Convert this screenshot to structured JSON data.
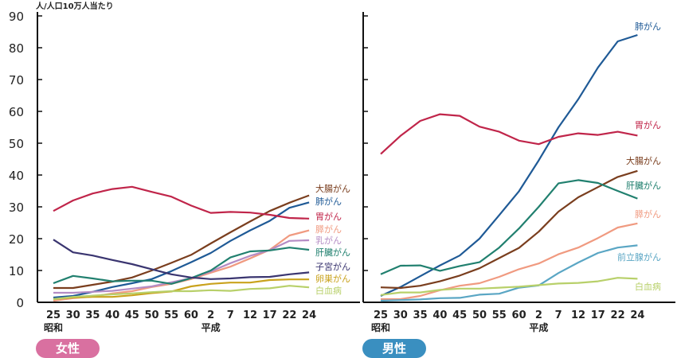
{
  "chart_data": [
    {
      "type": "line",
      "title": "女性",
      "ylabel": "人/人口10万人当たり",
      "ylim": [
        0,
        90
      ],
      "yticks": [
        0,
        10,
        20,
        30,
        40,
        50,
        60,
        70,
        80,
        90
      ],
      "categories": [
        "25",
        "30",
        "35",
        "40",
        "45",
        "50",
        "55",
        "60",
        "2",
        "7",
        "12",
        "17",
        "22",
        "24"
      ],
      "era_labels": [
        {
          "label": "昭和",
          "at": "25"
        },
        {
          "label": "平成",
          "at": "2"
        }
      ],
      "series": [
        {
          "name": "大腸がん",
          "color": "#7a3e1e",
          "values": [
            4.5,
            4.5,
            5.5,
            6.5,
            7.8,
            10,
            12.4,
            14.9,
            18.5,
            22,
            25.4,
            28.7,
            31.3,
            33.6
          ]
        },
        {
          "name": "肺がん",
          "color": "#1f5a96",
          "values": [
            1.5,
            2,
            3.3,
            4.8,
            6,
            7.3,
            9.8,
            12.6,
            15.5,
            19.3,
            22.6,
            25.6,
            29.7,
            31.4
          ]
        },
        {
          "name": "胃がん",
          "color": "#c0254a",
          "values": [
            28.7,
            32,
            34.2,
            35.6,
            36.3,
            34.7,
            33.2,
            30.4,
            28.1,
            28.4,
            28.2,
            27.5,
            26.5,
            26.3
          ]
        },
        {
          "name": "膵がん",
          "color": "#f09a80",
          "values": [
            0.5,
            1.3,
            1.8,
            2.8,
            3.5,
            4.8,
            5.8,
            7.3,
            9.3,
            11.2,
            13.8,
            16.5,
            21,
            22.6
          ]
        },
        {
          "name": "乳がん",
          "color": "#b48cc4",
          "values": [
            3,
            3,
            3.3,
            3.6,
            4.3,
            5,
            6.3,
            7.6,
            9.7,
            12.3,
            14.6,
            16.4,
            19.3,
            19.5
          ]
        },
        {
          "name": "肝臓がん",
          "color": "#21806f",
          "values": [
            6,
            8.3,
            7.5,
            6.6,
            6.8,
            6.8,
            5.8,
            7.6,
            10,
            14.1,
            16,
            16.3,
            17.2,
            16.5
          ]
        },
        {
          "name": "子宮がん",
          "color": "#3a3570",
          "values": [
            19.7,
            15.7,
            14.7,
            13.3,
            12,
            10.4,
            8.8,
            7.8,
            7.3,
            7.5,
            7.9,
            8,
            8.8,
            9.4
          ]
        },
        {
          "name": "卵巣がん",
          "color": "#c9a21c",
          "values": [
            1,
            1.5,
            1.7,
            1.7,
            2.2,
            2.9,
            3.4,
            5,
            5.8,
            6.2,
            6.2,
            7,
            7.2,
            7.2
          ]
        },
        {
          "name": "白血病",
          "color": "#b8d06a",
          "values": [
            1,
            1.7,
            2.1,
            2.5,
            2.8,
            3.2,
            3.5,
            3.5,
            3.8,
            3.6,
            4.2,
            4.4,
            5.2,
            4.7
          ]
        }
      ]
    },
    {
      "type": "line",
      "title": "男性",
      "ylim": [
        0,
        90
      ],
      "categories": [
        "25",
        "30",
        "35",
        "40",
        "45",
        "50",
        "55",
        "60",
        "2",
        "7",
        "12",
        "17",
        "22",
        "24"
      ],
      "era_labels": [
        {
          "label": "昭和",
          "at": "25"
        },
        {
          "label": "平成",
          "at": "2"
        }
      ],
      "series": [
        {
          "name": "肺がん",
          "color": "#1f5a96",
          "values": [
            2,
            4.8,
            8.2,
            11.6,
            14.7,
            20,
            27.4,
            34.9,
            44.6,
            55,
            63.8,
            73.8,
            82,
            84
          ]
        },
        {
          "name": "胃がん",
          "color": "#c0254a",
          "values": [
            46.6,
            52.3,
            57,
            59.1,
            58.6,
            55.2,
            53.6,
            50.8,
            49.7,
            52,
            53.1,
            52.6,
            53.6,
            52.4
          ]
        },
        {
          "name": "大腸がん",
          "color": "#7a3e1e",
          "values": [
            4.7,
            4.5,
            5.2,
            6.6,
            8.4,
            10.7,
            13.9,
            17.1,
            22.2,
            28.5,
            33,
            36.2,
            39.4,
            41.3
          ]
        },
        {
          "name": "肝臓がん",
          "color": "#21806f",
          "values": [
            8.8,
            11.5,
            11.6,
            9.9,
            11.4,
            12.6,
            17.2,
            23.2,
            30,
            37.4,
            38.4,
            37.5,
            35,
            32.6
          ]
        },
        {
          "name": "膵がん",
          "color": "#f09a80",
          "values": [
            1,
            1,
            2,
            3.8,
            5.2,
            6,
            8,
            10.4,
            12.2,
            15.1,
            17.2,
            20.2,
            23.5,
            24.8
          ]
        },
        {
          "name": "前立腺がん",
          "color": "#5aa6c4",
          "values": [
            0.5,
            0.7,
            0.9,
            1.3,
            1.4,
            2.4,
            2.7,
            4.6,
            5.3,
            9.2,
            12.5,
            15.5,
            17.2,
            17.9
          ]
        },
        {
          "name": "白血病",
          "color": "#b8d06a",
          "values": [
            2.3,
            3.1,
            3.1,
            3.9,
            4.3,
            4.3,
            4.6,
            4.9,
            5.4,
            5.9,
            6.1,
            6.6,
            7.7,
            7.4
          ]
        }
      ]
    }
  ],
  "badges": {
    "female": "女性",
    "male": "男性"
  },
  "colors": {
    "female_badge": "#d970a0",
    "male_badge": "#3a8fc0"
  }
}
